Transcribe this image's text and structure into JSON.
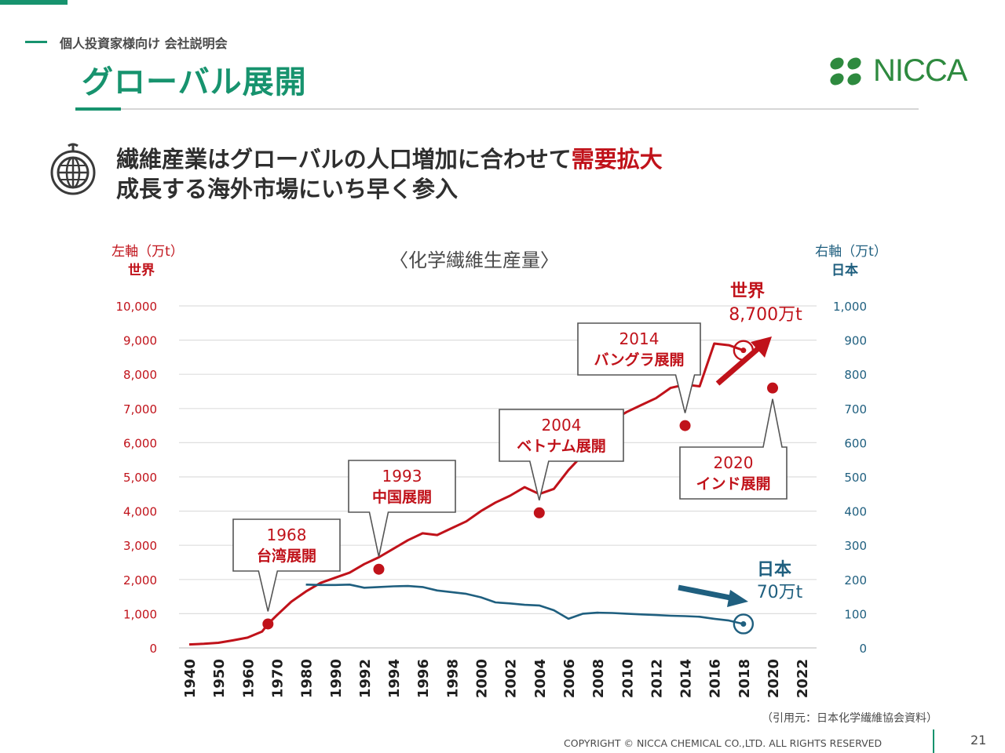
{
  "header": {
    "subtitle": "個人投資家様向け 会社説明会",
    "title": "グローバル展開",
    "logo_text": "NICCA"
  },
  "headline": {
    "line1_prefix": "繊維産業はグローバルの人口増加に合わせて",
    "line1_highlight": "需要拡大",
    "line2": "成長する海外市場にいち早く参入"
  },
  "footer": {
    "copyright": "COPYRIGHT © NICCA CHEMICAL CO.,LTD. ALL RIGHTS RESERVED",
    "page": "21"
  },
  "colors": {
    "accent": "#17936e",
    "world": "#c0121a",
    "japan": "#1f5f7f",
    "logo": "#2e8a3f"
  },
  "icons": {
    "globe": "globe-icon",
    "logo": "nicca-logo-icon"
  },
  "chart_data": {
    "type": "line",
    "title": "〈化学繊維生産量〉",
    "source": "（引用元：日本化学繊維協会資料）",
    "left_axis": {
      "label": "左軸（万t）",
      "sublabel": "世界",
      "range": [
        0,
        10000
      ],
      "ticks": [
        "0",
        "1,000",
        "2,000",
        "3,000",
        "4,000",
        "5,000",
        "6,000",
        "7,000",
        "8,000",
        "9,000",
        "10,000"
      ]
    },
    "right_axis": {
      "label": "右軸（万t）",
      "sublabel": "日本",
      "range": [
        0,
        1000
      ],
      "ticks": [
        "0",
        "100",
        "200",
        "300",
        "400",
        "500",
        "600",
        "700",
        "800",
        "900",
        "1,000"
      ]
    },
    "x_ticks": [
      "1940",
      "1950",
      "1960",
      "1970",
      "1980",
      "1990",
      "1992",
      "1994",
      "1996",
      "1998",
      "2000",
      "2002",
      "2004",
      "2006",
      "2008",
      "2010",
      "2012",
      "2014",
      "2016",
      "2018",
      "2020",
      "2022"
    ],
    "grid": true,
    "series": [
      {
        "name": "世界",
        "axis": "left",
        "points": [
          [
            0,
            100
          ],
          [
            0.5,
            120
          ],
          [
            1,
            150
          ],
          [
            1.5,
            220
          ],
          [
            2,
            300
          ],
          [
            2.5,
            480
          ],
          [
            2.7,
            700
          ],
          [
            3,
            950
          ],
          [
            3.5,
            1350
          ],
          [
            4,
            1650
          ],
          [
            4.5,
            1900
          ],
          [
            5,
            2050
          ],
          [
            5.5,
            2200
          ],
          [
            6,
            2450
          ],
          [
            6.5,
            2650
          ],
          [
            7,
            2900
          ],
          [
            7.5,
            3150
          ],
          [
            8,
            3350
          ],
          [
            8.5,
            3300
          ],
          [
            9,
            3500
          ],
          [
            9.5,
            3700
          ],
          [
            10,
            4000
          ],
          [
            10.5,
            4250
          ],
          [
            11,
            4450
          ],
          [
            11.5,
            4700
          ],
          [
            12,
            4500
          ],
          [
            12.5,
            4650
          ],
          [
            13,
            5200
          ],
          [
            13.5,
            5650
          ],
          [
            14,
            6200
          ],
          [
            14.5,
            6650
          ],
          [
            15,
            6900
          ],
          [
            15.5,
            7100
          ],
          [
            16,
            7300
          ],
          [
            16.5,
            7600
          ],
          [
            17,
            7700
          ],
          [
            17.5,
            7650
          ],
          [
            18,
            8900
          ],
          [
            18.5,
            8850
          ],
          [
            19,
            8700
          ]
        ]
      },
      {
        "name": "日本",
        "axis": "right",
        "points": [
          [
            4,
            185
          ],
          [
            4.5,
            184
          ],
          [
            5,
            184
          ],
          [
            5.5,
            185
          ],
          [
            6,
            176
          ],
          [
            6.5,
            178
          ],
          [
            7,
            180
          ],
          [
            7.5,
            181
          ],
          [
            8,
            178
          ],
          [
            8.5,
            168
          ],
          [
            9,
            163
          ],
          [
            9.5,
            158
          ],
          [
            10,
            148
          ],
          [
            10.5,
            133
          ],
          [
            11,
            130
          ],
          [
            11.5,
            126
          ],
          [
            12,
            124
          ],
          [
            12.5,
            110
          ],
          [
            13,
            85
          ],
          [
            13.5,
            100
          ],
          [
            14,
            103
          ],
          [
            14.5,
            102
          ],
          [
            15,
            100
          ],
          [
            15.5,
            98
          ],
          [
            16,
            96
          ],
          [
            16.5,
            94
          ],
          [
            17,
            93
          ],
          [
            17.5,
            91
          ],
          [
            18,
            85
          ],
          [
            18.5,
            80
          ],
          [
            19,
            70
          ]
        ]
      }
    ],
    "end_labels": {
      "world_name": "世界",
      "world_value": "8,700万t",
      "japan_name": "日本",
      "japan_value": "70万t"
    },
    "milestones": [
      {
        "year": "1968",
        "label": "台湾展開",
        "x": 2.7,
        "y": 700
      },
      {
        "year": "1993",
        "label": "中国展開",
        "x": 6.5,
        "y": 2300
      },
      {
        "year": "2004",
        "label": "ベトナム展開",
        "x": 12.0,
        "y": 3950
      },
      {
        "year": "2014",
        "label": "バングラ展開",
        "x": 17.0,
        "y": 6500
      },
      {
        "year": "2020",
        "label": "インド展開",
        "x": 20.0,
        "y": 7600
      }
    ]
  }
}
